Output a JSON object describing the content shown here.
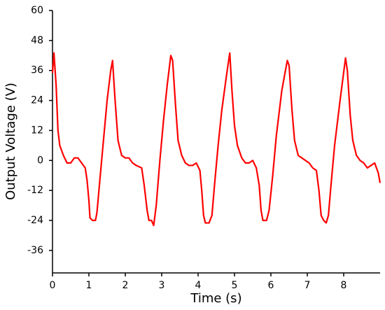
{
  "chart_data": {
    "type": "line",
    "x_label": "Time (s)",
    "y_label": "Output Voltage (V)",
    "xlim": [
      0,
      9
    ],
    "ylim": [
      -45,
      60
    ],
    "xticks": [
      0,
      1,
      2,
      3,
      4,
      5,
      6,
      7,
      8
    ],
    "yticks": [
      -36,
      -24,
      -12,
      0,
      12,
      24,
      36,
      48,
      60
    ],
    "series": [
      {
        "color": "#ff0000",
        "x": [
          0,
          0.04,
          0.1,
          0.15,
          0.2,
          0.3,
          0.4,
          0.5,
          0.6,
          0.7,
          0.8,
          0.9,
          0.95,
          1.0,
          1.03,
          1.1,
          1.18,
          1.22,
          1.3,
          1.4,
          1.5,
          1.6,
          1.65,
          1.72,
          1.8,
          1.9,
          2.0,
          2.1,
          2.2,
          2.3,
          2.45,
          2.52,
          2.6,
          2.65,
          2.72,
          2.78,
          2.85,
          2.95,
          3.05,
          3.15,
          3.25,
          3.3,
          3.38,
          3.45,
          3.55,
          3.65,
          3.75,
          3.85,
          3.95,
          4.05,
          4.1,
          4.15,
          4.2,
          4.3,
          4.38,
          4.45,
          4.55,
          4.65,
          4.78,
          4.87,
          4.93,
          5.0,
          5.08,
          5.2,
          5.3,
          5.4,
          5.5,
          5.6,
          5.68,
          5.73,
          5.78,
          5.88,
          5.95,
          6.05,
          6.15,
          6.3,
          6.45,
          6.5,
          6.58,
          6.65,
          6.75,
          6.85,
          6.95,
          7.05,
          7.15,
          7.25,
          7.32,
          7.38,
          7.45,
          7.52,
          7.58,
          7.65,
          7.75,
          7.9,
          8.05,
          8.1,
          8.18,
          8.25,
          8.35,
          8.45,
          8.55,
          8.65,
          8.75,
          8.85,
          8.95,
          9.0
        ],
        "values": [
          35,
          43,
          30,
          12,
          6,
          2,
          -1,
          -1,
          1,
          1,
          -1,
          -3,
          -8,
          -16,
          -23,
          -24,
          -24,
          -21,
          -8,
          8,
          24,
          36,
          40,
          24,
          8,
          2,
          1,
          1,
          -1,
          -2,
          -3,
          -10,
          -20,
          -24,
          -24,
          -26,
          -18,
          0,
          16,
          30,
          42,
          40,
          22,
          8,
          2,
          -1,
          -2,
          -2,
          -1,
          -4,
          -12,
          -22,
          -25,
          -25,
          -22,
          -10,
          6,
          20,
          34,
          43,
          28,
          14,
          6,
          1,
          -1,
          -1,
          0,
          -3,
          -10,
          -20,
          -24,
          -24,
          -20,
          -6,
          10,
          28,
          40,
          38,
          20,
          8,
          2,
          1,
          0,
          -1,
          -3,
          -4,
          -12,
          -22,
          -24,
          -25,
          -22,
          -10,
          6,
          24,
          41,
          36,
          18,
          8,
          2,
          0,
          -1,
          -3,
          -2,
          -1,
          -5,
          -9
        ]
      }
    ]
  }
}
